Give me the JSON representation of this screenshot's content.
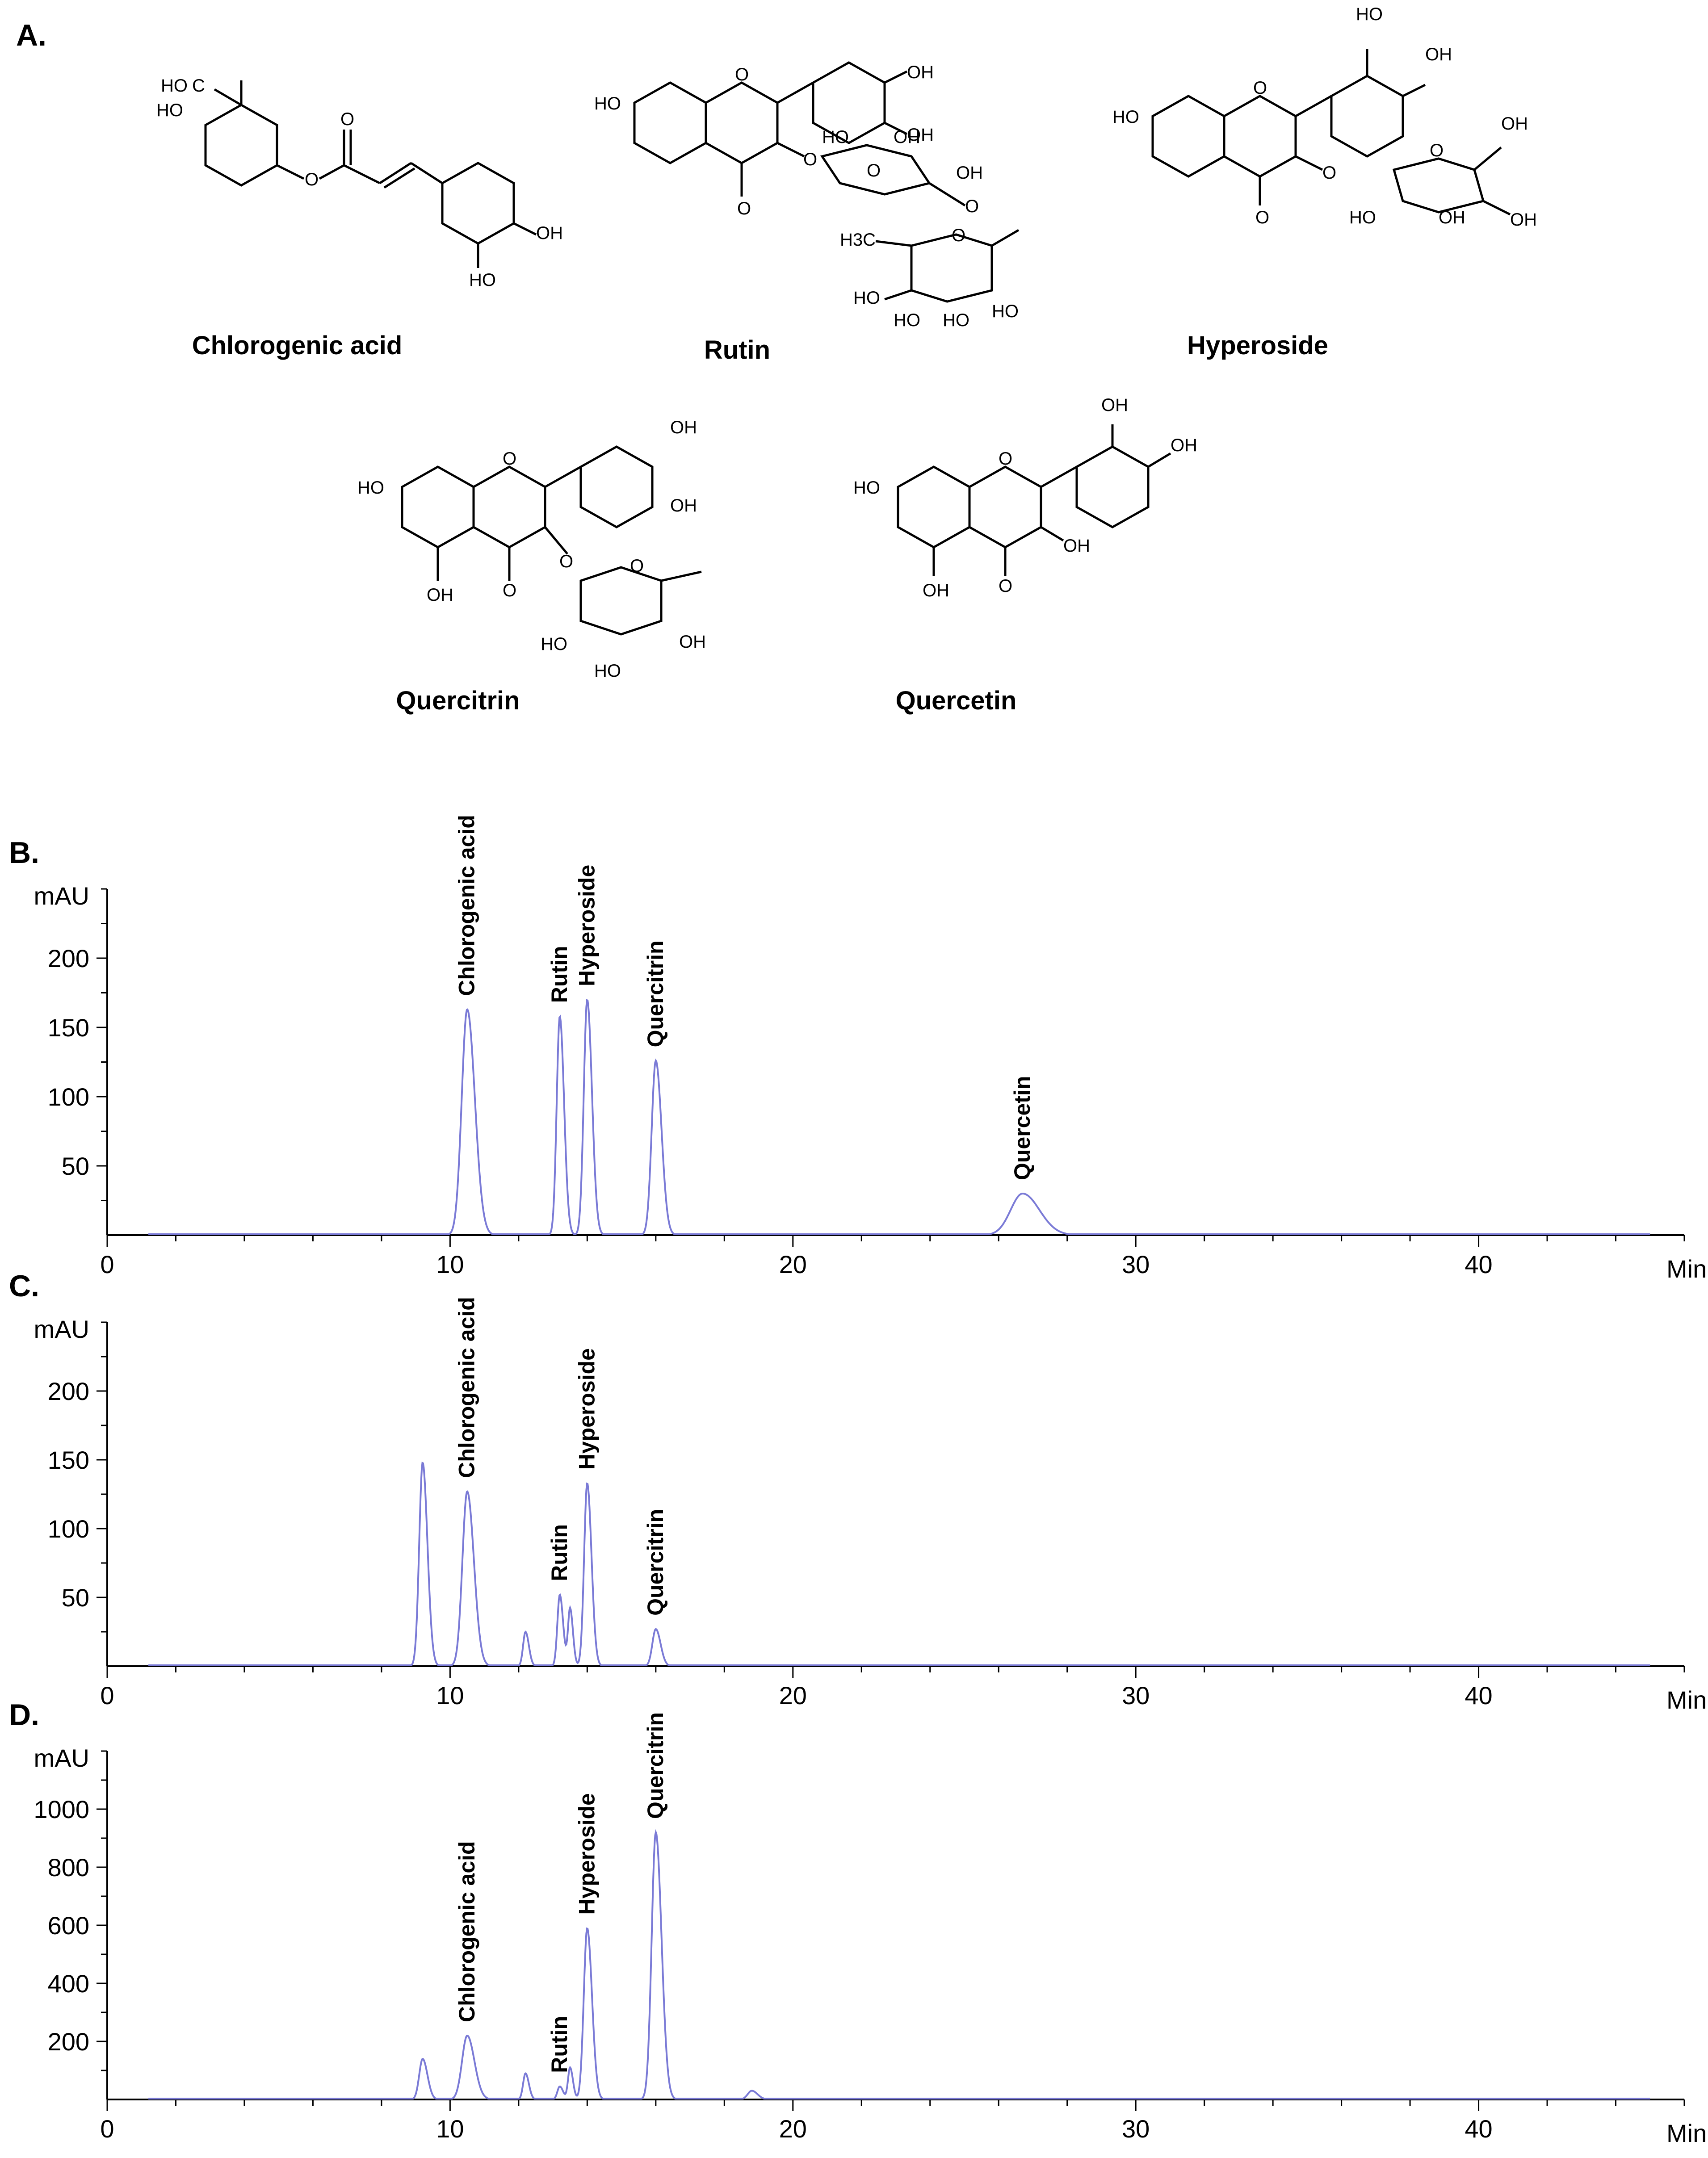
{
  "panel_labels": {
    "a": "A.",
    "b": "B.",
    "c": "C.",
    "d": "D."
  },
  "structures": [
    {
      "name": "Chlorogenic acid",
      "atoms": [
        "HO",
        "HO",
        "C",
        "O",
        "O",
        "OH",
        "HO"
      ]
    },
    {
      "name": "Rutin",
      "atoms": [
        "HO",
        "O",
        "OH",
        "OH",
        "O",
        "O",
        "HO",
        "OH",
        "O",
        "OH",
        "O",
        "H3C",
        "O",
        "HO",
        "HO",
        "HO",
        "HO"
      ]
    },
    {
      "name": "Hyperoside",
      "atoms": [
        "HO",
        "HO",
        "OH",
        "O",
        "O",
        "O",
        "O",
        "OH",
        "HO",
        "OH",
        "OH"
      ]
    },
    {
      "name": "Quercitrin",
      "atoms": [
        "OH",
        "HO",
        "O",
        "OH",
        "OH",
        "O",
        "O",
        "O",
        "HO",
        "OH",
        "HO"
      ]
    },
    {
      "name": "Quercetin",
      "atoms": [
        "OH",
        "OH",
        "HO",
        "O",
        "OH",
        "OH",
        "O"
      ]
    }
  ],
  "chart_data": [
    {
      "type": "line",
      "panel": "B.",
      "ylabel": "mAU",
      "xlabel": "Min",
      "xlim": [
        0,
        46
      ],
      "ylim": [
        0,
        250
      ],
      "xticks": [
        0,
        10,
        20,
        30,
        40
      ],
      "yticks": [
        50,
        100,
        150,
        200
      ],
      "color": "#7a7ad6",
      "peaks": [
        {
          "label": "Chlorogenic acid",
          "x": 10.5,
          "y": 163,
          "width": 0.16
        },
        {
          "label": "Rutin",
          "x": 13.2,
          "y": 158,
          "width": 0.09
        },
        {
          "label": "Hyperoside",
          "x": 14.0,
          "y": 170,
          "width": 0.1
        },
        {
          "label": "Quercitrin",
          "x": 16.0,
          "y": 126,
          "width": 0.12
        },
        {
          "label": "Quercetin",
          "x": 26.7,
          "y": 30,
          "width": 0.35
        }
      ]
    },
    {
      "type": "line",
      "panel": "C.",
      "ylabel": "mAU",
      "xlabel": "Min",
      "xlim": [
        0,
        46
      ],
      "ylim": [
        0,
        250
      ],
      "xticks": [
        0,
        10,
        20,
        30,
        40
      ],
      "yticks": [
        50,
        100,
        150,
        200
      ],
      "color": "#7a7ad6",
      "peaks": [
        {
          "label": "",
          "x": 9.2,
          "y": 148,
          "width": 0.1
        },
        {
          "label": "Chlorogenic acid",
          "x": 10.5,
          "y": 127,
          "width": 0.14
        },
        {
          "label": "",
          "x": 12.2,
          "y": 25,
          "width": 0.07
        },
        {
          "label": "Rutin",
          "x": 13.2,
          "y": 52,
          "width": 0.07
        },
        {
          "label": "",
          "x": 13.5,
          "y": 42,
          "width": 0.06
        },
        {
          "label": "Hyperoside",
          "x": 14.0,
          "y": 133,
          "width": 0.09
        },
        {
          "label": "Quercitrin",
          "x": 16.0,
          "y": 27,
          "width": 0.1
        }
      ]
    },
    {
      "type": "line",
      "panel": "D.",
      "ylabel": "mAU",
      "xlabel": "Min",
      "xlim": [
        0,
        46
      ],
      "ylim": [
        0,
        1200
      ],
      "xticks": [
        0,
        10,
        20,
        30,
        40
      ],
      "yticks": [
        200,
        400,
        600,
        800,
        1000
      ],
      "color": "#7a7ad6",
      "peaks": [
        {
          "label": "",
          "x": 9.2,
          "y": 140,
          "width": 0.1
        },
        {
          "label": "Chlorogenic acid",
          "x": 10.5,
          "y": 220,
          "width": 0.15
        },
        {
          "label": "",
          "x": 12.2,
          "y": 90,
          "width": 0.07
        },
        {
          "label": "Rutin",
          "x": 13.2,
          "y": 45,
          "width": 0.07
        },
        {
          "label": "",
          "x": 13.5,
          "y": 110,
          "width": 0.06
        },
        {
          "label": "Hyperoside",
          "x": 14.0,
          "y": 590,
          "width": 0.1
        },
        {
          "label": "Quercitrin",
          "x": 16.0,
          "y": 920,
          "width": 0.12
        },
        {
          "label": "",
          "x": 18.8,
          "y": 30,
          "width": 0.12
        }
      ]
    }
  ]
}
